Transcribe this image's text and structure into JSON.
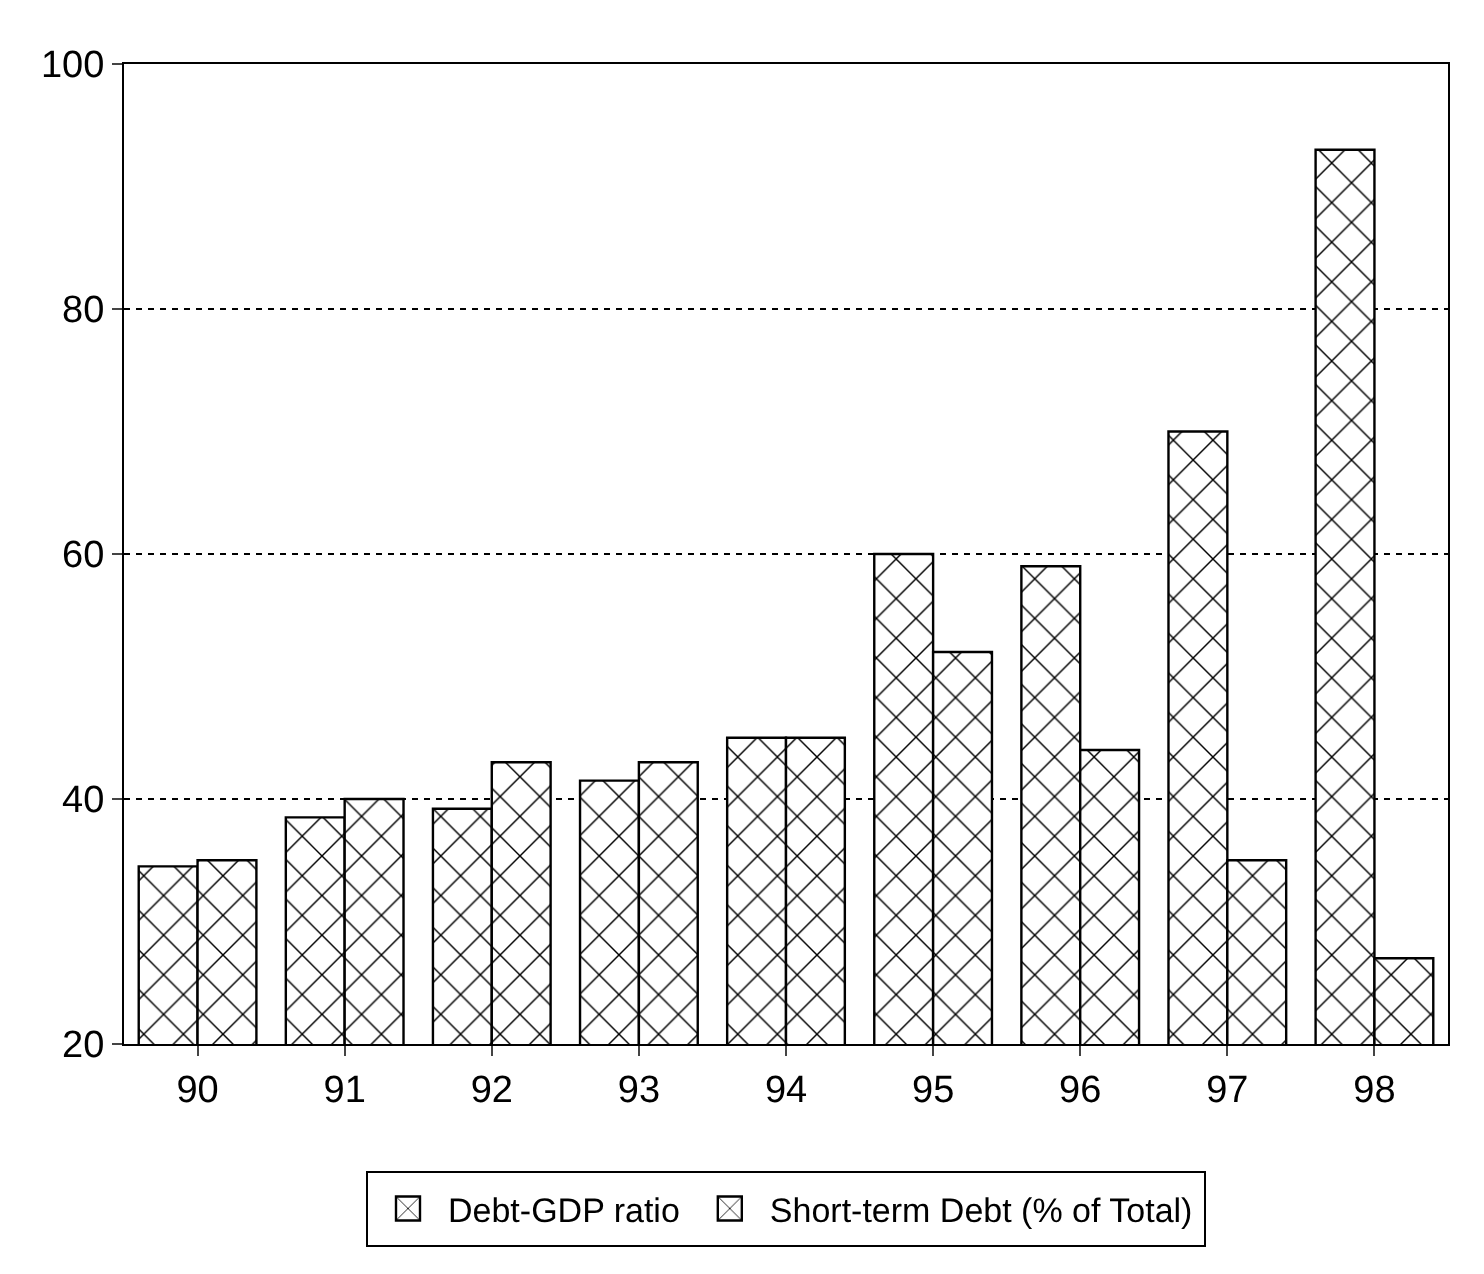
{
  "chart_data": {
    "type": "bar",
    "categories": [
      "90",
      "91",
      "92",
      "93",
      "94",
      "95",
      "96",
      "97",
      "98"
    ],
    "series": [
      {
        "name": "Debt-GDP ratio",
        "color": "#000000",
        "values": [
          34.5,
          38.5,
          39.2,
          41.5,
          45,
          60,
          59,
          70,
          93
        ]
      },
      {
        "name": "Short-term Debt (% of Total)",
        "color": "#000000",
        "values": [
          35,
          40,
          43,
          43,
          45,
          52,
          44,
          35,
          27
        ]
      }
    ],
    "ylim": [
      20,
      100
    ],
    "yticks": [
      20,
      40,
      60,
      80,
      100
    ],
    "grid": "y",
    "legend": "bottom"
  }
}
